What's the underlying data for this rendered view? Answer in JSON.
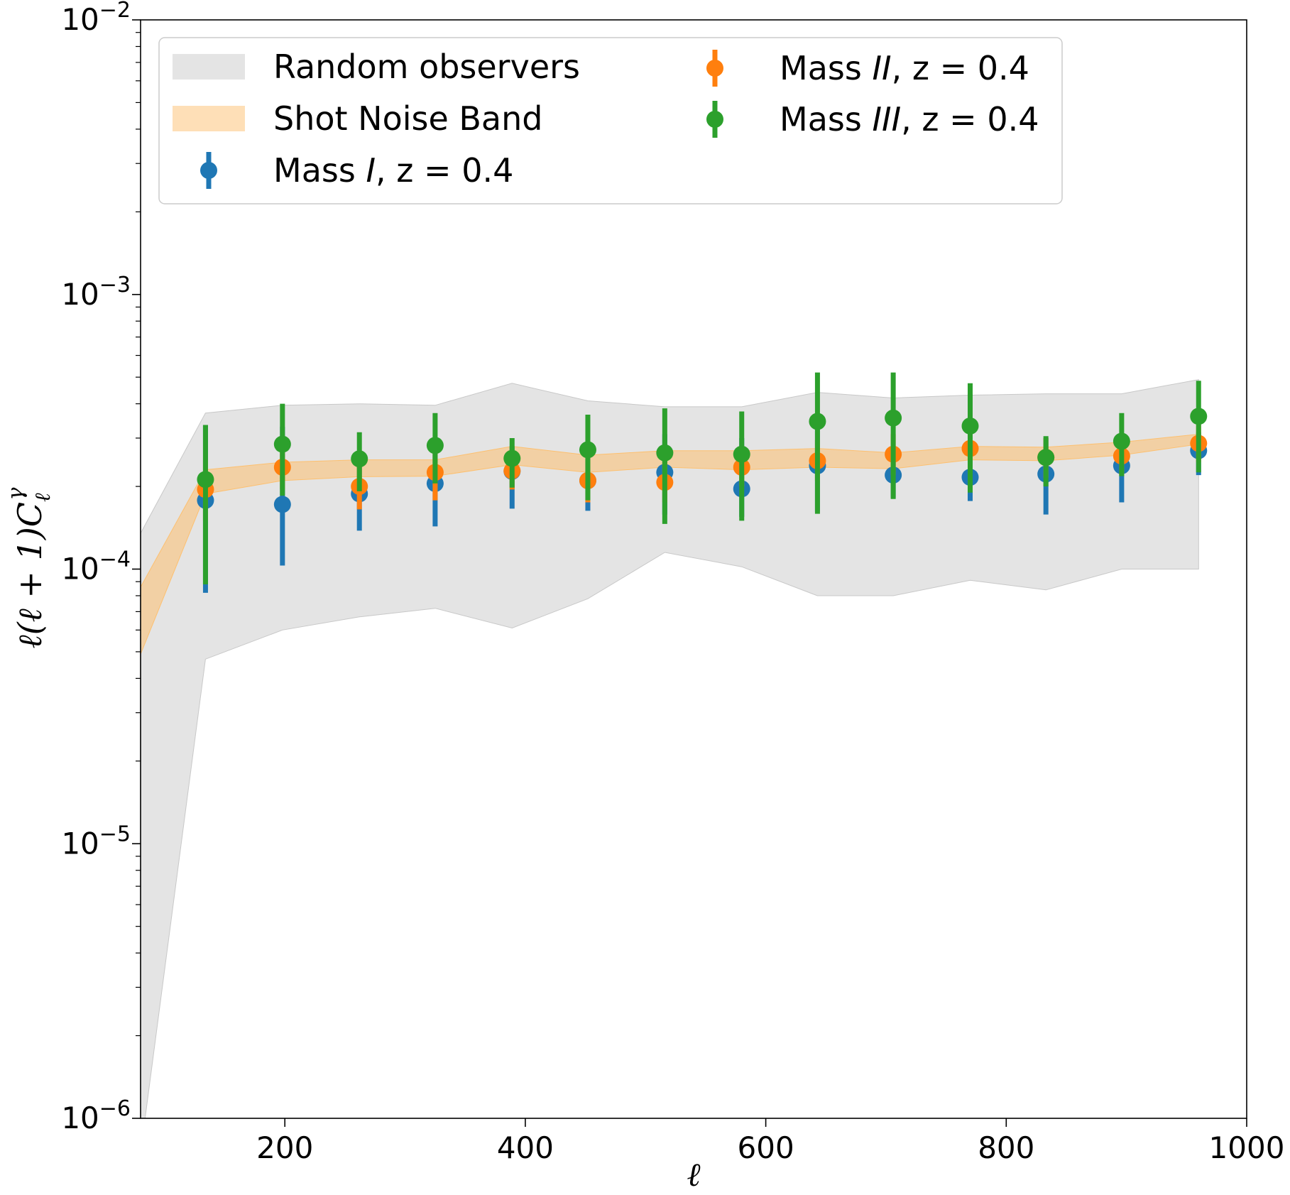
{
  "chart_data": {
    "type": "scatter",
    "title": "",
    "xlabel": "ℓ",
    "ylabel": "ℓ(ℓ + 1)C",
    "ylabel_sub": "ℓ",
    "ylabel_sup": "γ",
    "xlim": [
      80,
      1000
    ],
    "ylim_log10": [
      -6,
      -2
    ],
    "y_scale": "log",
    "grid": false,
    "legend_position": "top",
    "x_ticks": [
      {
        "value": 200,
        "label": "200"
      },
      {
        "value": 400,
        "label": "400"
      },
      {
        "value": 600,
        "label": "600"
      },
      {
        "value": 800,
        "label": "800"
      },
      {
        "value": 1000,
        "label": "1000"
      }
    ],
    "y_ticks": [
      {
        "exp": -6,
        "base": "10",
        "sup": "−6"
      },
      {
        "exp": -5,
        "base": "10",
        "sup": "−5"
      },
      {
        "exp": -4,
        "base": "10",
        "sup": "−4"
      },
      {
        "exp": -3,
        "base": "10",
        "sup": "−3"
      },
      {
        "exp": -2,
        "base": "10",
        "sup": "−2"
      }
    ],
    "random_observers_band": {
      "name": "Random observers",
      "color": "#d9d9d9",
      "x": [
        80,
        134,
        198,
        262,
        325,
        389,
        452,
        516,
        580,
        643,
        706,
        770,
        833,
        896,
        960
      ],
      "lower": [
        7.5e-07,
        4.7e-05,
        6e-05,
        6.7e-05,
        7.2e-05,
        6.1e-05,
        7.8e-05,
        0.000115,
        0.000102,
        8e-05,
        8e-05,
        9.1e-05,
        8.4e-05,
        0.0001,
        0.0001
      ],
      "upper": [
        0.000135,
        0.00037,
        0.000395,
        0.0004,
        0.000395,
        0.000475,
        0.00041,
        0.00039,
        0.00039,
        0.00044,
        0.00042,
        0.00043,
        0.000435,
        0.000435,
        0.00049
      ]
    },
    "shot_noise_band": {
      "name": "Shot Noise Band",
      "color": "#fdc070",
      "x": [
        80,
        134,
        198,
        262,
        325,
        389,
        452,
        516,
        580,
        643,
        706,
        770,
        833,
        896,
        960
      ],
      "lower": [
        4.9e-05,
        0.000188,
        0.00021,
        0.000217,
        0.000218,
        0.00024,
        0.000225,
        0.000235,
        0.00023,
        0.000235,
        0.000232,
        0.00025,
        0.000248,
        0.00026,
        0.000285
      ],
      "upper": [
        8.6e-05,
        0.00023,
        0.000245,
        0.00025,
        0.00025,
        0.00028,
        0.00026,
        0.00027,
        0.00027,
        0.000275,
        0.000265,
        0.00028,
        0.000278,
        0.00029,
        0.00031
      ]
    },
    "series": [
      {
        "name": "Mass I, z = 0.4",
        "label_prefix": "Mass ",
        "label_roman": "I",
        "label_suffix": ", z = 0.4",
        "color": "#1f77b4",
        "x": [
          134,
          198,
          262,
          325,
          389,
          452,
          516,
          580,
          643,
          706,
          770,
          833,
          896,
          960
        ],
        "y": [
          0.000178,
          0.000172,
          0.000188,
          0.000205,
          0.000227,
          0.00021,
          0.000225,
          0.000196,
          0.000238,
          0.00022,
          0.000216,
          0.000222,
          0.000238,
          0.00027
        ],
        "y_low": [
          8.2e-05,
          0.000103,
          0.000138,
          0.000143,
          0.000166,
          0.000163,
          0.000158,
          0.000155,
          0.000162,
          0.000182,
          0.000177,
          0.000158,
          0.000175,
          0.00022
        ],
        "y_high": [
          0.000335,
          0.00033,
          0.00025,
          0.00027,
          0.00028,
          0.000262,
          0.00031,
          0.0003,
          0.00037,
          0.000262,
          0.000268,
          0.0003,
          0.000312,
          0.000315
        ]
      },
      {
        "name": "Mass II, z = 0.4",
        "label_prefix": "Mass ",
        "label_roman": "II",
        "label_suffix": ", z = 0.4",
        "color": "#ff7f0e",
        "x": [
          134,
          198,
          262,
          325,
          389,
          452,
          516,
          580,
          643,
          706,
          770,
          833,
          896,
          960
        ],
        "y": [
          0.000195,
          0.000235,
          0.0002,
          0.000225,
          0.000228,
          0.00021,
          0.000207,
          0.000235,
          0.000248,
          0.000262,
          0.000275,
          0.000255,
          0.000258,
          0.000287
        ],
        "y_low": [
          0.00015,
          0.000195,
          0.000165,
          0.000178,
          0.000195,
          0.000175,
          0.000175,
          0.0002,
          0.00021,
          0.00022,
          0.000235,
          0.000215,
          0.00022,
          0.000245
        ],
        "y_high": [
          0.00025,
          0.00029,
          0.000245,
          0.00028,
          0.000265,
          0.00025,
          0.000245,
          0.000275,
          0.000295,
          0.00031,
          0.00032,
          0.0003,
          0.0003,
          0.000335
        ]
      },
      {
        "name": "Mass III, z = 0.4",
        "label_prefix": "Mass ",
        "label_roman": "III",
        "label_suffix": ", z = 0.4",
        "color": "#2ca02c",
        "x": [
          134,
          198,
          262,
          325,
          389,
          452,
          516,
          580,
          643,
          706,
          770,
          833,
          896,
          960
        ],
        "y": [
          0.000212,
          0.000285,
          0.000252,
          0.000282,
          0.000253,
          0.000272,
          0.000265,
          0.000262,
          0.000345,
          0.000355,
          0.000332,
          0.000255,
          0.000292,
          0.00036
        ],
        "y_low": [
          8.8e-05,
          0.000185,
          0.000192,
          0.000205,
          0.000198,
          0.000178,
          0.000146,
          0.00015,
          0.000159,
          0.00018,
          0.00019,
          0.0002,
          0.000218,
          0.000225
        ],
        "y_high": [
          0.000335,
          0.0004,
          0.000315,
          0.00037,
          0.0003,
          0.000365,
          0.000385,
          0.000375,
          0.00052,
          0.00052,
          0.000475,
          0.000305,
          0.00037,
          0.000485
        ]
      }
    ]
  }
}
